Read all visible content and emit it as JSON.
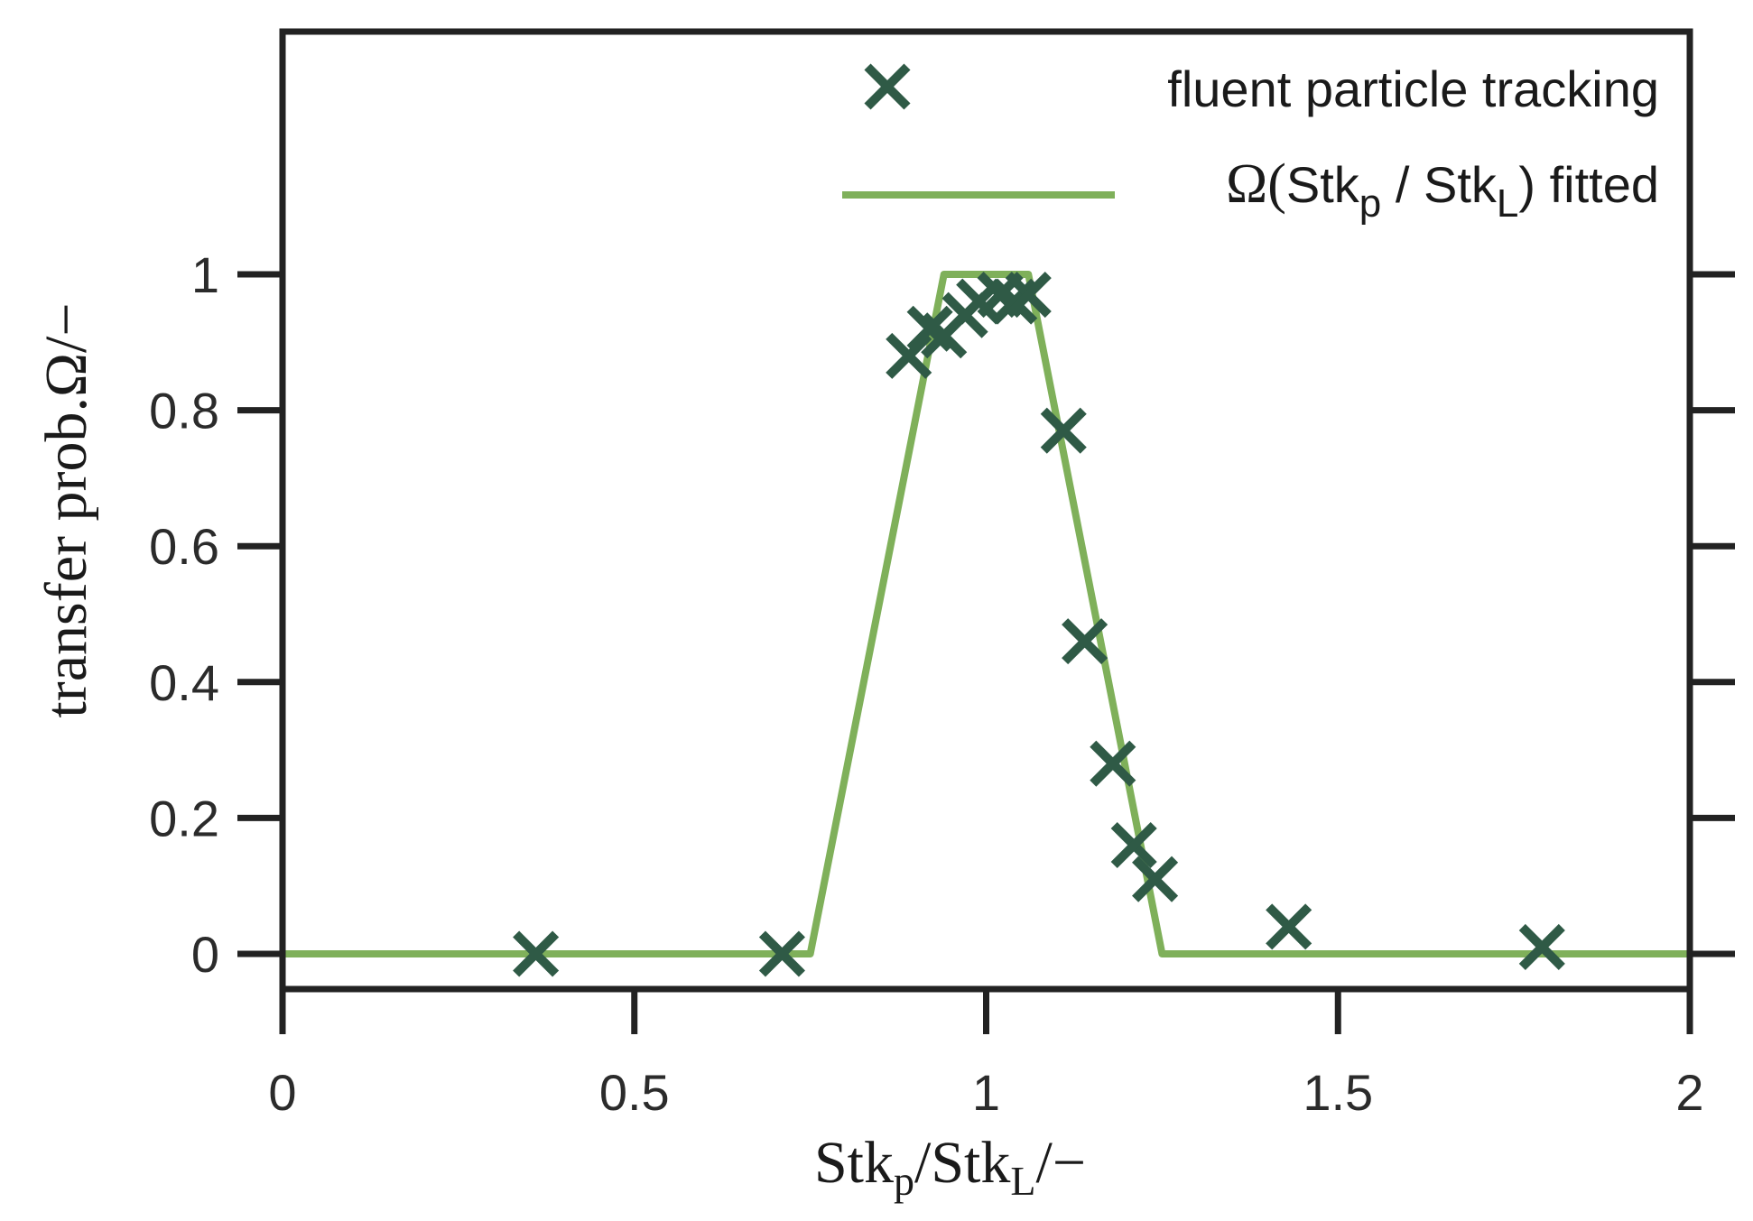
{
  "chart_data": {
    "type": "line",
    "xlabel": "Stk_p/Stk_L/−",
    "xlabel_parts": {
      "a": "Stk",
      "a_sub": "p",
      "sep": "/",
      "b": "Stk",
      "b_sub": "L",
      "tail": "/−"
    },
    "ylabel": "transfer prob.Ω/−",
    "xlim": [
      0,
      2
    ],
    "ylim": [
      -0.05,
      1.37
    ],
    "x_ticks": [
      0,
      0.5,
      1,
      1.5,
      2
    ],
    "x_tick_labels": [
      "0",
      "0.5",
      "1",
      "1.5",
      "2"
    ],
    "y_ticks": [
      0,
      0.2,
      0.4,
      0.6,
      0.8,
      1
    ],
    "y_tick_labels": [
      "0",
      "0.2",
      "0.4",
      "0.6",
      "0.8",
      "1"
    ],
    "grid": false,
    "legend_position": "top-right",
    "series": [
      {
        "name": "fluent particle tracking",
        "kind": "scatter",
        "marker": "x",
        "color": "#2f5a46",
        "x": [
          0.36,
          0.71,
          0.89,
          0.92,
          0.94,
          0.97,
          0.99,
          1.02,
          1.04,
          1.06,
          1.11,
          1.14,
          1.18,
          1.21,
          1.24,
          1.43,
          1.79
        ],
        "y": [
          0.0,
          0.0,
          0.88,
          0.92,
          0.91,
          0.94,
          0.96,
          0.97,
          0.96,
          0.97,
          0.77,
          0.46,
          0.28,
          0.16,
          0.11,
          0.04,
          0.01
        ]
      },
      {
        "name": "Ω(Stk_p / Stk_L) fitted",
        "name_parts": {
          "omega": "Ω(",
          "a": "Stk",
          "a_sub": "p",
          "sep": " / ",
          "b": "Stk",
          "b_sub": "L",
          "tail": ") fitted"
        },
        "kind": "line",
        "color": "#7fb05a",
        "x": [
          0,
          0.75,
          0.94,
          1.06,
          1.25,
          2
        ],
        "y": [
          0,
          0,
          1,
          1,
          0,
          0
        ]
      }
    ]
  }
}
